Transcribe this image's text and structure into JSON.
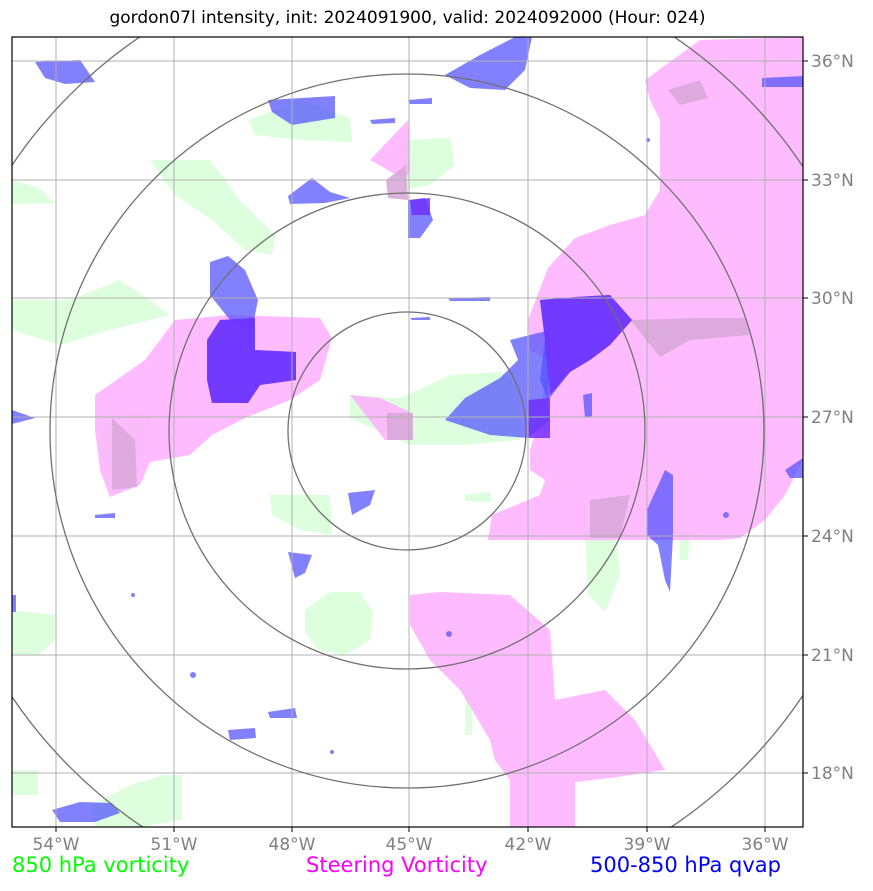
{
  "title": "gordon07l intensity, init: 2024091900, valid: 2024092000 (Hour: 024)",
  "lon_labels": [
    "54°W",
    "51°W",
    "48°W",
    "45°W",
    "42°W",
    "39°W",
    "36°W"
  ],
  "lat_labels": [
    "36°N",
    "33°N",
    "30°N",
    "27°N",
    "24°N",
    "21°N",
    "18°N"
  ],
  "legend": {
    "vorticity_850": "850 hPa vorticity",
    "steering_vorticity": "Steering Vorticity",
    "qvap_500_850": "500-850 hPa qvap"
  },
  "colors": {
    "vorticity_850": "#00ff00",
    "steering_vorticity": "#ff00ff",
    "qvap_500_850": "#0000ff",
    "grid": "#808080"
  }
}
